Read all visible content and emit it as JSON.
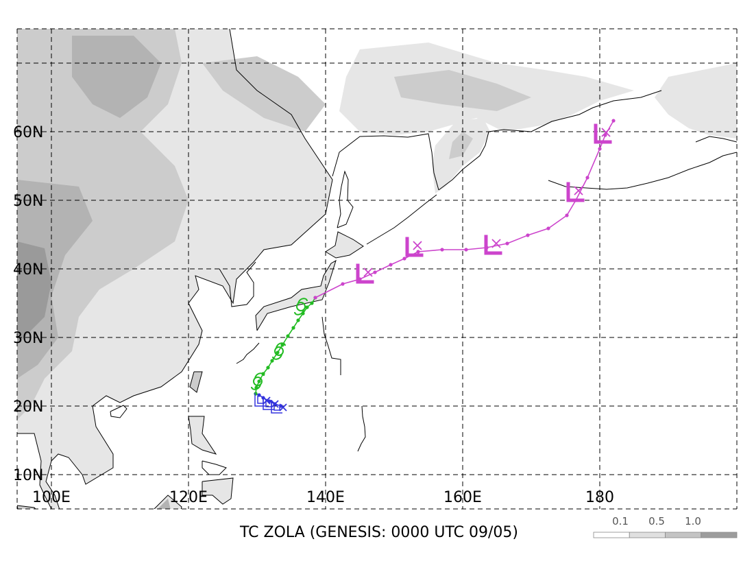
{
  "title": "TC ZOLA (GENESIS: 0000 UTC 09/05)",
  "map": {
    "lon_range": [
      95,
      200
    ],
    "lat_range": [
      5,
      75
    ],
    "lon_gridlines": [
      100,
      120,
      140,
      160,
      180
    ],
    "lat_gridlines": [
      10,
      20,
      30,
      40,
      50,
      60,
      70
    ],
    "lon_labels": [
      {
        "lon": 100,
        "text": "100E"
      },
      {
        "lon": 120,
        "text": "120E"
      },
      {
        "lon": 140,
        "text": "140E"
      },
      {
        "lon": 160,
        "text": "160E"
      },
      {
        "lon": 180,
        "text": "180"
      }
    ],
    "lat_labels": [
      {
        "lat": 10,
        "text": "10N"
      },
      {
        "lat": 20,
        "text": "20N"
      },
      {
        "lat": 30,
        "text": "30N"
      },
      {
        "lat": 40,
        "text": "40N"
      },
      {
        "lat": 50,
        "text": "50N"
      },
      {
        "lat": 60,
        "text": "60N"
      }
    ],
    "terrain_colors": [
      "#e6e6e6",
      "#cccccc",
      "#b3b3b3",
      "#9a9a9a"
    ]
  },
  "legend": {
    "labels": [
      "0.1",
      "0.5",
      "1.0"
    ],
    "colors": [
      "#ffffff",
      "#e0e0e0",
      "#c4c4c4",
      "#9c9c9c"
    ]
  },
  "track": {
    "colors": {
      "tropical_depression": "#3333dd",
      "tropical_storm": "#22bb22",
      "extratropical": "#cc44cc"
    },
    "segments": [
      {
        "stage": "tropical_depression",
        "points": [
          [
            133.5,
            20.0
          ],
          [
            132.6,
            20.3
          ],
          [
            131.8,
            20.7
          ],
          [
            130.9,
            21.2
          ],
          [
            130.3,
            21.6
          ],
          [
            129.8,
            21.8
          ]
        ]
      },
      {
        "stage": "tropical_storm",
        "points": [
          [
            129.8,
            21.8
          ],
          [
            129.9,
            22.7
          ],
          [
            130.3,
            23.6
          ],
          [
            130.9,
            24.7
          ],
          [
            131.6,
            25.6
          ],
          [
            132.2,
            26.6
          ],
          [
            133.0,
            27.8
          ],
          [
            133.7,
            28.9
          ],
          [
            134.5,
            30.2
          ],
          [
            135.3,
            31.4
          ],
          [
            136.0,
            32.5
          ],
          [
            136.7,
            33.5
          ],
          [
            137.3,
            34.4
          ],
          [
            138.0,
            35.0
          ],
          [
            138.5,
            35.8
          ]
        ]
      },
      {
        "stage": "extratropical",
        "points": [
          [
            138.5,
            35.8
          ],
          [
            142.5,
            37.8
          ],
          [
            145.0,
            38.5
          ],
          [
            147.2,
            39.5
          ],
          [
            149.5,
            40.6
          ],
          [
            151.5,
            41.5
          ],
          [
            153.5,
            42.5
          ],
          [
            157.0,
            42.8
          ],
          [
            160.5,
            42.8
          ],
          [
            163.5,
            43.1
          ],
          [
            166.5,
            43.7
          ],
          [
            169.5,
            44.9
          ],
          [
            172.5,
            45.9
          ],
          [
            175.2,
            47.8
          ],
          [
            176.5,
            50.0
          ],
          [
            178.2,
            53.3
          ],
          [
            180.0,
            57.5
          ],
          [
            180.8,
            59.5
          ],
          [
            182.0,
            61.6
          ]
        ]
      }
    ],
    "symbols": [
      {
        "type": "TD",
        "lon": 130.3,
        "lat": 20.7
      },
      {
        "type": "TD",
        "lon": 131.5,
        "lat": 20.2
      },
      {
        "type": "TD",
        "lon": 132.7,
        "lat": 19.7
      },
      {
        "type": "TS",
        "lon": 130.1,
        "lat": 23.6
      },
      {
        "type": "TS",
        "lon": 133.2,
        "lat": 28.0
      },
      {
        "type": "TS",
        "lon": 136.4,
        "lat": 34.5
      },
      {
        "type": "L",
        "lon": 145.6,
        "lat": 39.1
      },
      {
        "type": "L",
        "lon": 152.8,
        "lat": 43.0
      },
      {
        "type": "L",
        "lon": 164.3,
        "lat": 43.3
      },
      {
        "type": "L",
        "lon": 176.3,
        "lat": 51.0
      },
      {
        "type": "L",
        "lon": 180.3,
        "lat": 59.5
      }
    ]
  }
}
